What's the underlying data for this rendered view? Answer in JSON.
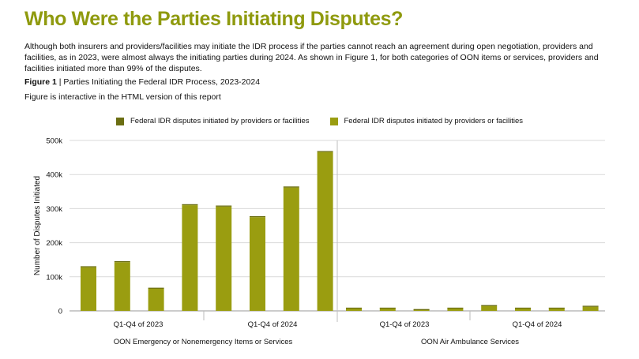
{
  "page": {
    "title": "Who Were the Parties Initiating Disputes?",
    "intro": "Although both insurers and providers/facilities may initiate the IDR process if the parties cannot reach an agreement during open negotiation, providers and facilities, as in 2023, were almost always the initiating parties during 2024. As shown in Figure 1, for both categories of OON items or services, providers and facilities initiated more than 99% of the disputes.",
    "figure_label": "Figure 1",
    "figure_caption": " | Parties Initiating the Federal IDR Process, 2023-2024",
    "figure_note": "Figure is interactive in the HTML version of this report"
  },
  "colors": {
    "title": "#8f9a0e",
    "series_dark": "#6b6e12",
    "series_light": "#9a9d10",
    "grid": "#d9d9d9",
    "divider": "#bfbfbf"
  },
  "chart_data": {
    "type": "bar",
    "stacked": true,
    "ylabel": "Number of Disputes Initiated",
    "ylim": [
      0,
      500000
    ],
    "yticks": [
      0,
      100000,
      200000,
      300000,
      400000,
      500000
    ],
    "ytick_labels": [
      "0",
      "100k",
      "200k",
      "300k",
      "400k",
      "500k"
    ],
    "legend_position": "top-center",
    "grid": true,
    "series": [
      {
        "name": "Federal IDR disputes initiated by providers or facilities",
        "color": "#6b6e12",
        "values": [
          3000,
          3000,
          2000,
          3000,
          3000,
          3000,
          3000,
          3000,
          500,
          500,
          200,
          500,
          3000,
          500,
          500,
          3000
        ]
      },
      {
        "name": "Federal IDR disputes initiated by providers or facilities",
        "color": "#9a9d10",
        "values": [
          128000,
          143000,
          66000,
          310000,
          306000,
          275000,
          362000,
          466000,
          9000,
          9000,
          5000,
          9000,
          14000,
          9000,
          9000,
          12000
        ]
      }
    ],
    "groups": [
      {
        "name": "OON Emergency or Nonemergency Items or Services",
        "subgroups": [
          "Q1-Q4 of 2023",
          "Q1-Q4 of 2024"
        ],
        "bars_per_subgroup": 4
      },
      {
        "name": "OON Air Ambulance Services",
        "subgroups": [
          "Q1-Q4 of 2023",
          "Q1-Q4 of 2024"
        ],
        "bars_per_subgroup": 4
      }
    ]
  }
}
